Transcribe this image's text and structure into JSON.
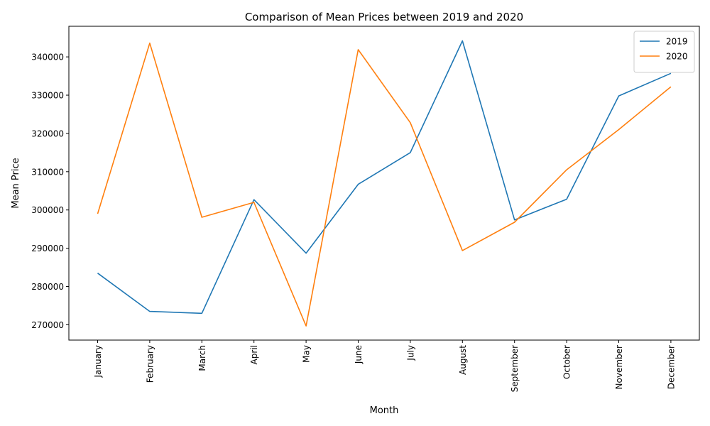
{
  "chart_data": {
    "type": "line",
    "title": "Comparison of Mean Prices between 2019 and 2020",
    "xlabel": "Month",
    "ylabel": "Mean Price",
    "categories": [
      "January",
      "February",
      "March",
      "April",
      "May",
      "June",
      "July",
      "August",
      "September",
      "October",
      "November",
      "December"
    ],
    "series": [
      {
        "name": "2019",
        "color": "#1f77b4",
        "values": [
          283500,
          273500,
          273000,
          302700,
          288700,
          306700,
          315000,
          344200,
          297400,
          302800,
          329800,
          335700
        ]
      },
      {
        "name": "2020",
        "color": "#ff7f0e",
        "values": [
          299000,
          343600,
          298100,
          302000,
          269700,
          341900,
          322800,
          289400,
          296800,
          310500,
          321000,
          332200
        ]
      }
    ],
    "yticks": [
      270000,
      280000,
      290000,
      300000,
      310000,
      320000,
      330000,
      340000
    ],
    "ylim": [
      266000,
      348000
    ],
    "grid": false,
    "legend_position": "upper right"
  }
}
